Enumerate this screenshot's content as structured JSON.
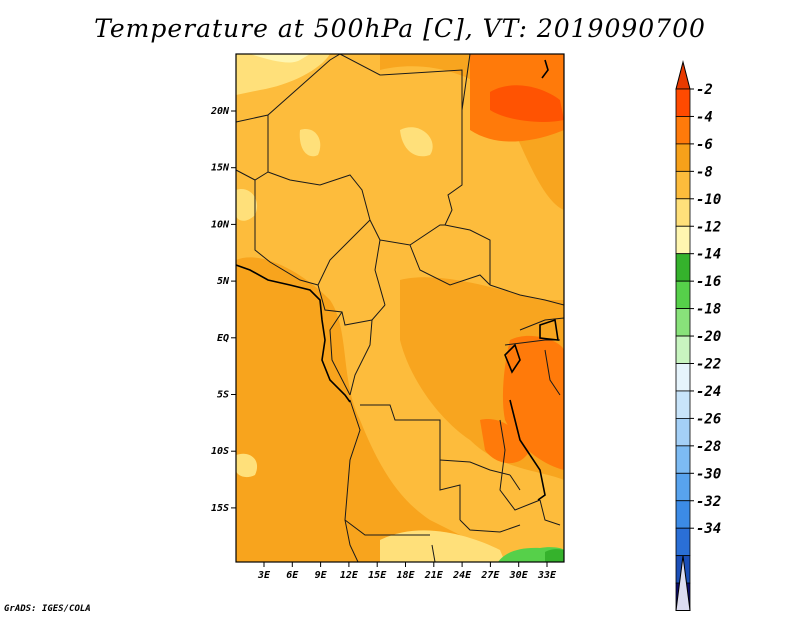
{
  "title": "Temperature at 500hPa [C], VT: 2019090700",
  "credit": "GrADS: IGES/COLA",
  "map": {
    "region": "Central Africa",
    "lat_labels": [
      "20N",
      "15N",
      "10N",
      "5N",
      "EQ",
      "5S",
      "10S",
      "15S"
    ],
    "lon_labels": [
      "3E",
      "6E",
      "9E",
      "12E",
      "15E",
      "18E",
      "21E",
      "24E",
      "27E",
      "30E",
      "33E"
    ]
  },
  "colorbar": {
    "colors": [
      "#dcdcf0",
      "#0c0c6e",
      "#1b4fb8",
      "#2a6fd6",
      "#3c8be6",
      "#58a3ee",
      "#7dbbf3",
      "#a4d0f7",
      "#c8e4fa",
      "#e6f4fc",
      "#c8f5c0",
      "#88e27a",
      "#56d04a",
      "#35b22c",
      "#fff6b0",
      "#ffe07a",
      "#fdbc3c",
      "#f7a11a",
      "#ff7a0a",
      "#ff4a00",
      "#e83a00"
    ],
    "labels": [
      "-2",
      "-4",
      "-6",
      "-8",
      "-10",
      "-12",
      "-14",
      "-16",
      "-18",
      "-20",
      "-22",
      "-24",
      "-26",
      "-28",
      "-30",
      "-32",
      "-34"
    ]
  }
}
